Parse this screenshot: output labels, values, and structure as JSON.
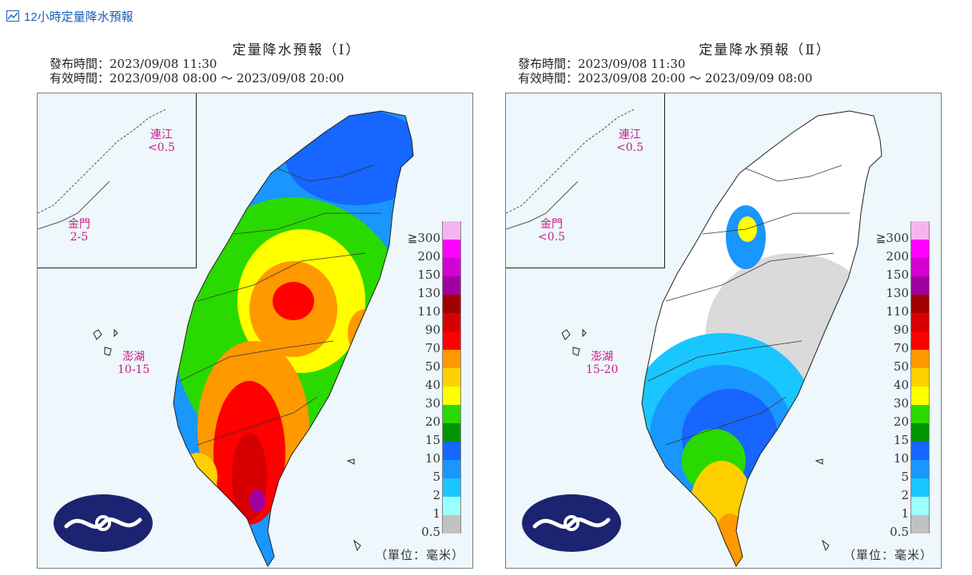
{
  "header": {
    "title": "12小時定量降水預報",
    "icon": "chart-line-icon"
  },
  "panels": [
    {
      "title": "定量降水預報（Ⅰ）",
      "issued": "發布時間：2023/09/08 11:30",
      "valid": "有效時間：2023/09/08 08:00 ～ 2023/09/08 20:00",
      "islands": [
        {
          "name": "連江",
          "value": "<0.5"
        },
        {
          "name": "金門",
          "value": "2-5"
        },
        {
          "name": "澎湖",
          "value": "10-15"
        }
      ],
      "unit": "（單位：毫米）"
    },
    {
      "title": "定量降水預報（Ⅱ）",
      "issued": "發布時間：2023/09/08 11:30",
      "valid": "有效時間：2023/09/08 20:00 ～ 2023/09/09 08:00",
      "islands": [
        {
          "name": "連江",
          "value": "<0.5"
        },
        {
          "name": "金門",
          "value": "<0.5"
        },
        {
          "name": "澎湖",
          "value": "15-20"
        }
      ],
      "unit": "（單位：毫米）"
    }
  ],
  "legend": {
    "labels": [
      "≧300",
      "200",
      "150",
      "130",
      "110",
      "90",
      "70",
      "50",
      "40",
      "30",
      "20",
      "15",
      "10",
      "5",
      "2",
      "1",
      "0.5"
    ],
    "colors": [
      "#f7b3f0",
      "#ff00ff",
      "#d200d2",
      "#a0009f",
      "#a30000",
      "#d60000",
      "#ff0000",
      "#ff9900",
      "#ffd000",
      "#ffff00",
      "#2ad900",
      "#009500",
      "#1666ff",
      "#1a96ff",
      "#1ac6ff",
      "#9cffff",
      "#c1c1c1"
    ]
  },
  "colors": {
    "title": "#1a5fb4",
    "island_label": "#c71d8a",
    "logo": "#1c2370"
  }
}
